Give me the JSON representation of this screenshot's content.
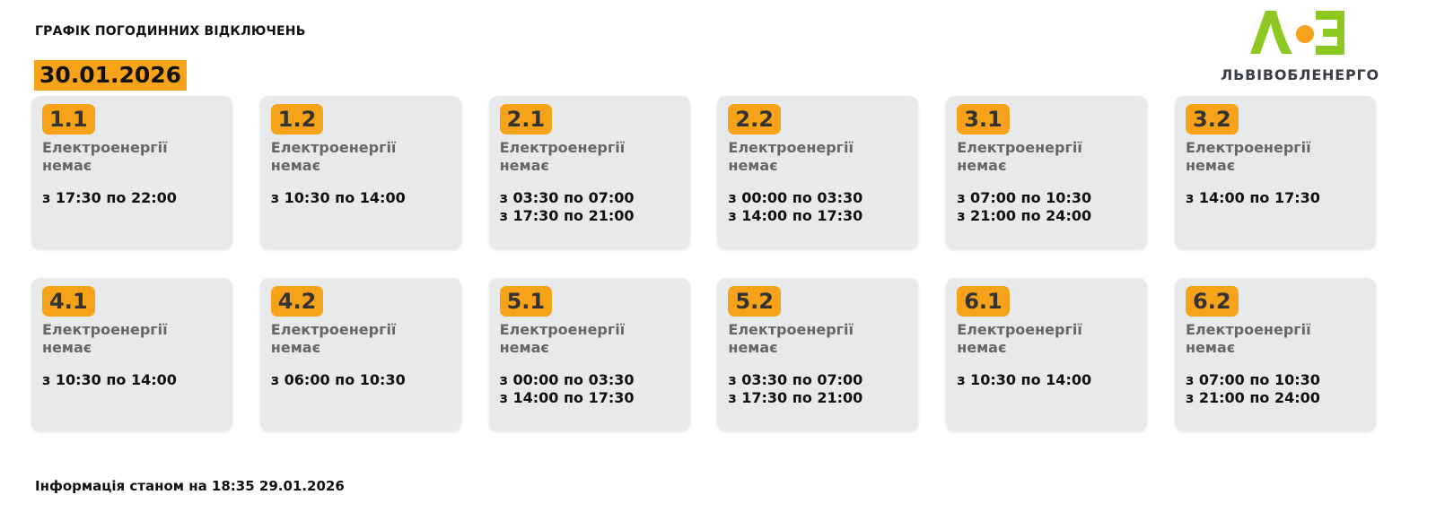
{
  "header": {
    "title": "ГРАФІК ПОГОДИННИХ ВІДКЛЮЧЕНЬ",
    "date": "30.01.2026"
  },
  "logo": {
    "text": "ЛЬВІВОБЛЕНЕРГО",
    "mark": "ЛОЕ",
    "colors": {
      "green": "#8cc820",
      "orange": "#f6a31a"
    }
  },
  "groups": [
    {
      "id": "1.1",
      "status": "Електроенергії немає",
      "times": [
        "з 17:30 по 22:00"
      ]
    },
    {
      "id": "1.2",
      "status": "Електроенергії немає",
      "times": [
        "з 10:30 по 14:00"
      ]
    },
    {
      "id": "2.1",
      "status": "Електроенергії немає",
      "times": [
        "з 03:30 по 07:00",
        "з 17:30 по 21:00"
      ]
    },
    {
      "id": "2.2",
      "status": "Електроенергії немає",
      "times": [
        "з 00:00 по 03:30",
        "з 14:00 по 17:30"
      ]
    },
    {
      "id": "3.1",
      "status": "Електроенергії немає",
      "times": [
        "з 07:00 по 10:30",
        "з 21:00 по 24:00"
      ]
    },
    {
      "id": "3.2",
      "status": "Електроенергії немає",
      "times": [
        "з 14:00 по 17:30"
      ]
    },
    {
      "id": "4.1",
      "status": "Електроенергії немає",
      "times": [
        "з 10:30 по 14:00"
      ]
    },
    {
      "id": "4.2",
      "status": "Електроенергії немає",
      "times": [
        "з 06:00 по 10:30"
      ]
    },
    {
      "id": "5.1",
      "status": "Електроенергії немає",
      "times": [
        "з 00:00 по 03:30",
        "з 14:00 по 17:30"
      ]
    },
    {
      "id": "5.2",
      "status": "Електроенергії немає",
      "times": [
        "з 03:30 по 07:00",
        "з 17:30 по 21:00"
      ]
    },
    {
      "id": "6.1",
      "status": "Електроенергії немає",
      "times": [
        "з 10:30 по 14:00"
      ]
    },
    {
      "id": "6.2",
      "status": "Електроенергії немає",
      "times": [
        "з 07:00 по 10:30",
        "з 21:00 по 24:00"
      ]
    }
  ],
  "footer": {
    "info": "Інформація станом на 18:35 29.01.2026"
  },
  "colors": {
    "accent": "#f6a31a",
    "card": "#e8e9eb"
  }
}
